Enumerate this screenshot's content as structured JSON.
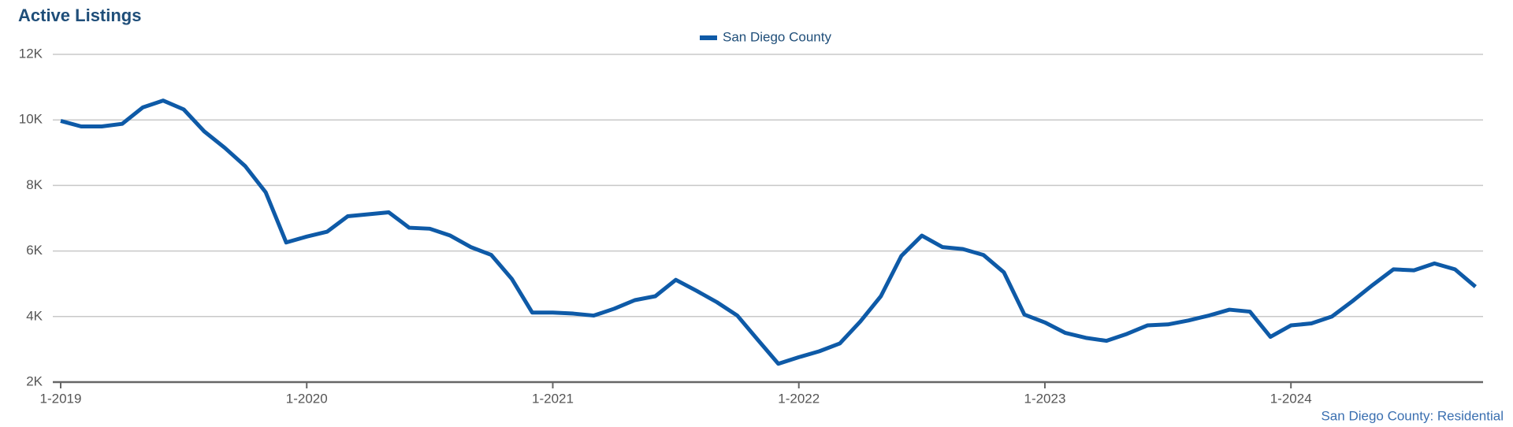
{
  "chart_data": {
    "type": "line",
    "title": "Active Listings",
    "footnote": "San Diego County: Residential",
    "categories": [
      "1-2019",
      null,
      null,
      null,
      null,
      null,
      null,
      null,
      null,
      null,
      null,
      null,
      "1-2020",
      null,
      null,
      null,
      null,
      null,
      null,
      null,
      null,
      null,
      null,
      null,
      "1-2021",
      null,
      null,
      null,
      null,
      null,
      null,
      null,
      null,
      null,
      null,
      null,
      "1-2022",
      null,
      null,
      null,
      null,
      null,
      null,
      null,
      null,
      null,
      null,
      null,
      "1-2023",
      null,
      null,
      null,
      null,
      null,
      null,
      null,
      null,
      null,
      null,
      null,
      "1-2024",
      null,
      null,
      null,
      null,
      null,
      null,
      null,
      null,
      null
    ],
    "series": [
      {
        "name": "San Diego County",
        "color": "#0e5aa7",
        "values": [
          9970,
          9800,
          9800,
          9880,
          10380,
          10590,
          10320,
          9650,
          9150,
          8590,
          7790,
          6260,
          6440,
          6590,
          7060,
          7120,
          7180,
          6710,
          6680,
          6470,
          6120,
          5880,
          5150,
          4120,
          4120,
          4090,
          4030,
          4240,
          4500,
          4620,
          5120,
          4790,
          4440,
          4030,
          3290,
          2560,
          2760,
          2940,
          3180,
          3850,
          4620,
          5850,
          6470,
          6120,
          6060,
          5880,
          5350,
          4060,
          3820,
          3500,
          3350,
          3260,
          3470,
          3730,
          3760,
          3880,
          4030,
          4210,
          4150,
          3380,
          3730,
          3790,
          4000,
          4470,
          4970,
          5440,
          5410,
          5620,
          5440,
          4910
        ]
      }
    ],
    "ylim": [
      2000,
      12000
    ],
    "yticks": [
      {
        "value": 2000,
        "label": "2K"
      },
      {
        "value": 4000,
        "label": "4K"
      },
      {
        "value": 6000,
        "label": "6K"
      },
      {
        "value": 8000,
        "label": "8K"
      },
      {
        "value": 10000,
        "label": "10K"
      },
      {
        "value": 12000,
        "label": "12K"
      }
    ],
    "grid": true,
    "legend": "top"
  }
}
